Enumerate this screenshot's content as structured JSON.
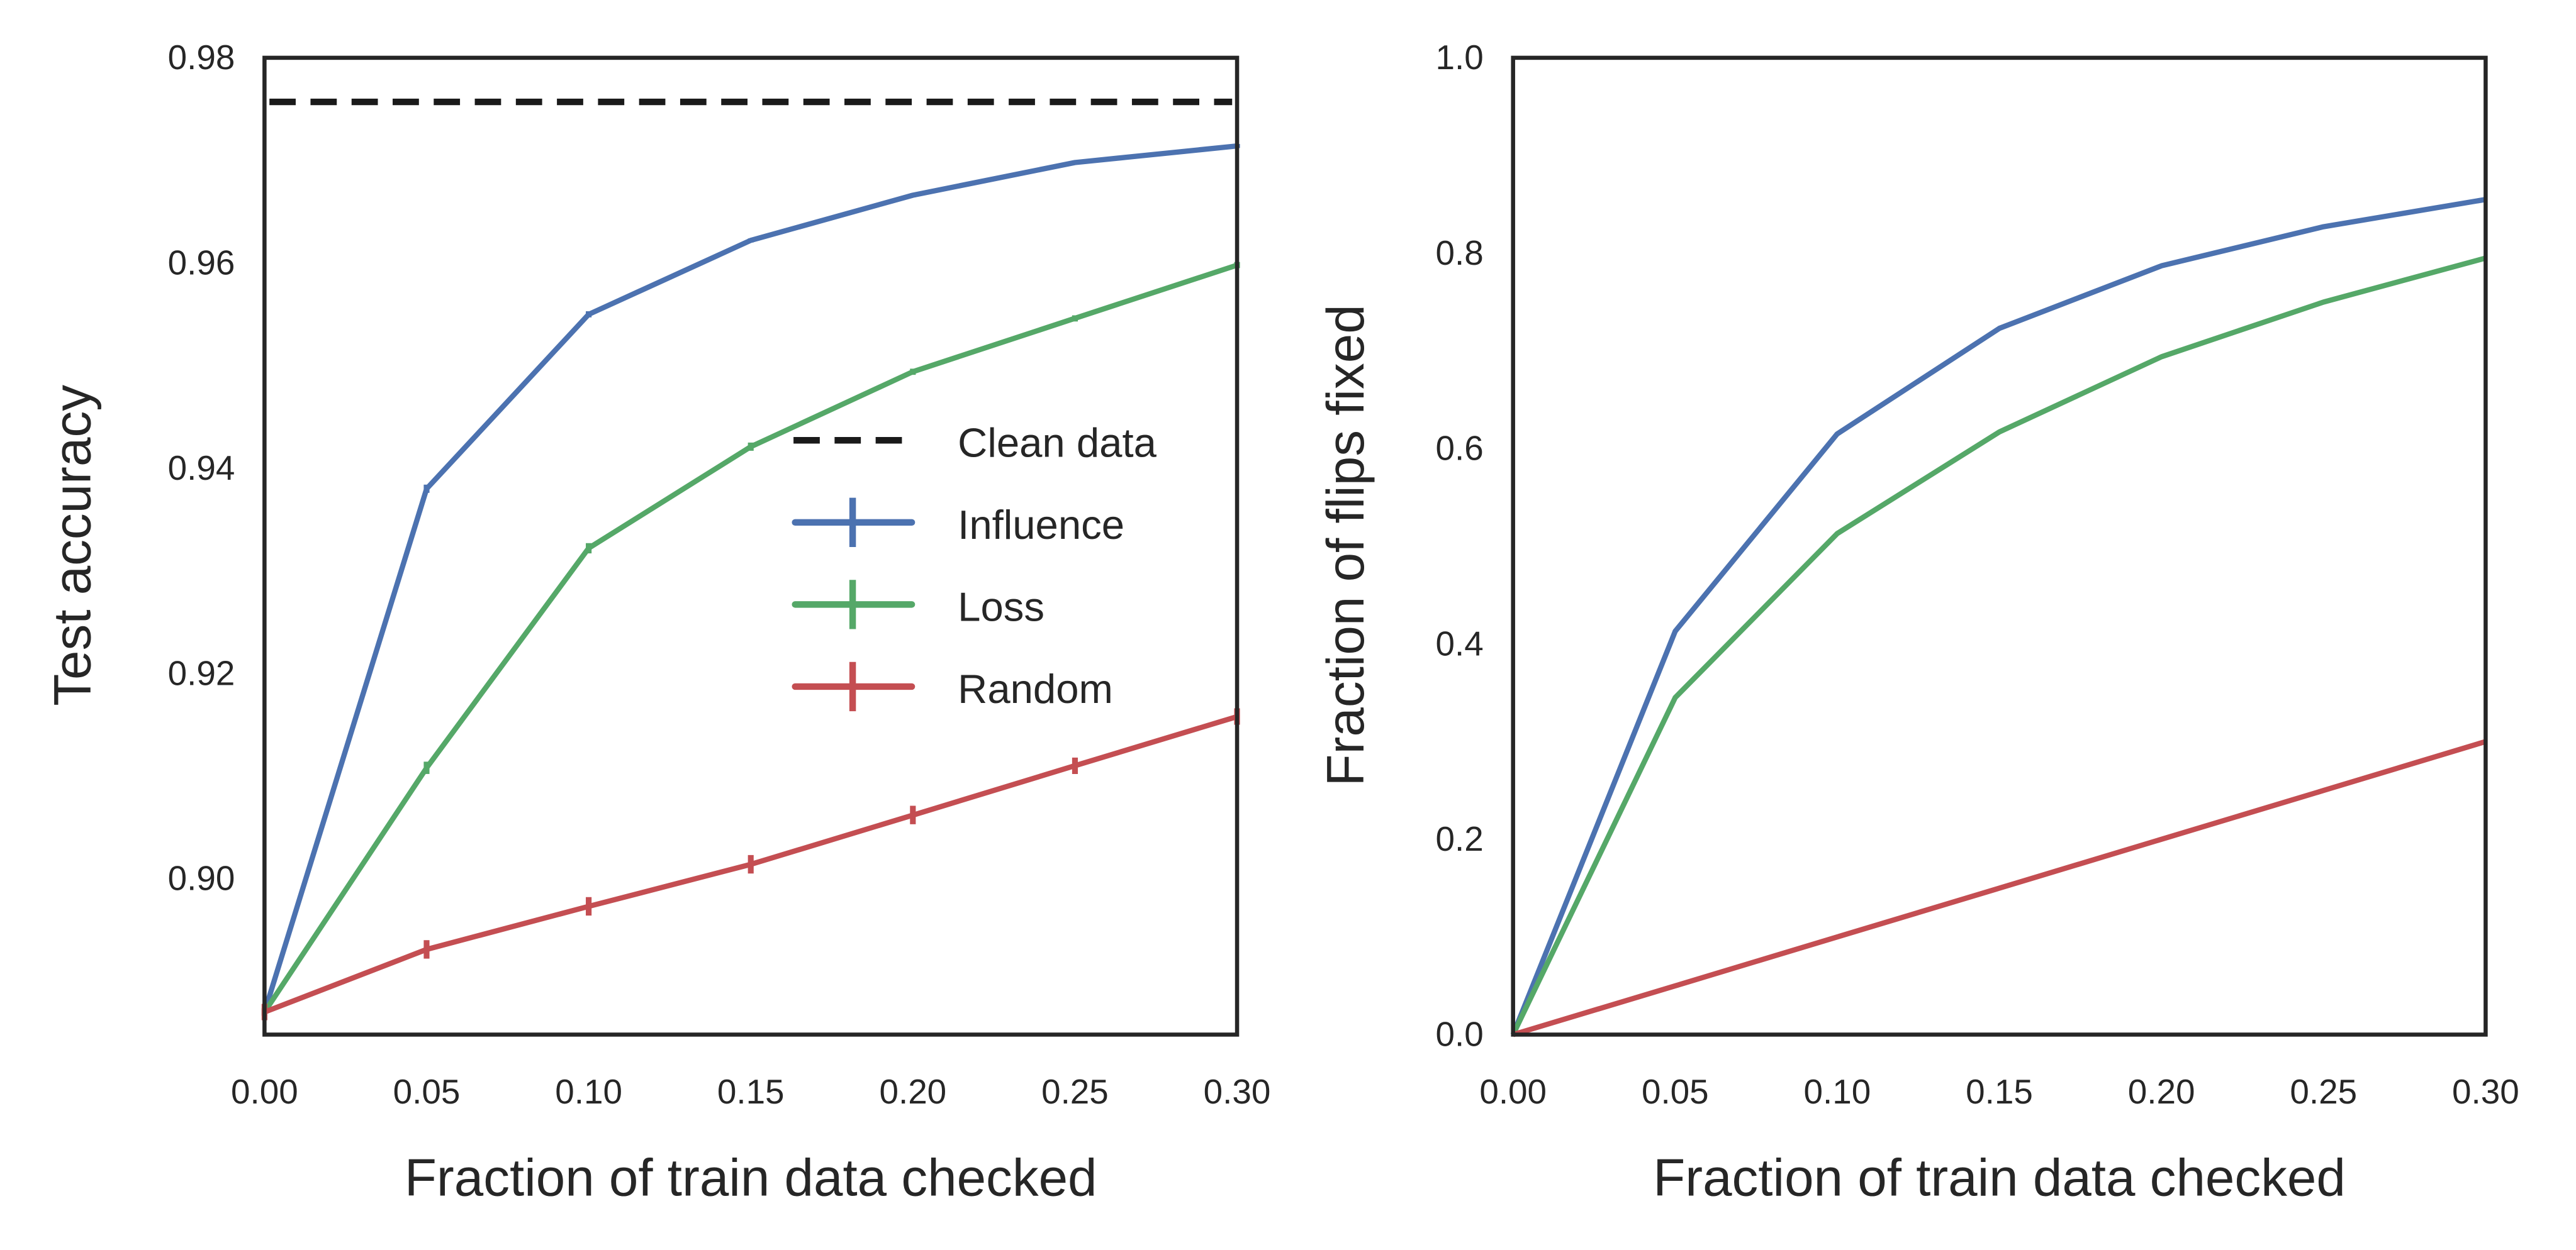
{
  "chart_data": [
    {
      "type": "line",
      "xlabel": "Fraction of train data checked",
      "ylabel": "Test accuracy",
      "xlim": [
        0.0,
        0.3
      ],
      "ylim": [
        0.8848,
        0.98
      ],
      "xticks": [
        "0.00",
        "0.05",
        "0.10",
        "0.15",
        "0.20",
        "0.25",
        "0.30"
      ],
      "yticks": [
        "0.90",
        "0.92",
        "0.94",
        "0.96",
        "0.98"
      ],
      "grid": false,
      "legend_position": "center-right",
      "x": [
        0.0,
        0.05,
        0.1,
        0.15,
        0.2,
        0.25,
        0.3
      ],
      "reference_line": {
        "name": "Clean data",
        "y": 0.9757,
        "color": "#1a1a1a",
        "style": "dashed"
      },
      "series": [
        {
          "name": "Influence",
          "color": "#4c72b0",
          "values": [
            0.887,
            0.938,
            0.955,
            0.9622,
            0.9666,
            0.9698,
            0.9714
          ],
          "yerr": [
            0.0003,
            0.0004,
            0.0003,
            0.0002,
            0.0002,
            0.0002,
            0.0002
          ]
        },
        {
          "name": "Loss",
          "color": "#55a868",
          "values": [
            0.887,
            0.9108,
            0.9322,
            0.9421,
            0.9494,
            0.9546,
            0.9598
          ],
          "yerr": [
            0.0004,
            0.0006,
            0.0005,
            0.0004,
            0.0003,
            0.0003,
            0.0003
          ]
        },
        {
          "name": "Random",
          "color": "#c44e52",
          "values": [
            0.887,
            0.8931,
            0.8973,
            0.9014,
            0.9062,
            0.911,
            0.9158
          ],
          "yerr": [
            0.0008,
            0.0009,
            0.0009,
            0.0009,
            0.0009,
            0.0008,
            0.0008
          ]
        }
      ]
    },
    {
      "type": "line",
      "xlabel": "Fraction of train data checked",
      "ylabel": "Fraction of flips fixed",
      "xlim": [
        0.0,
        0.3
      ],
      "ylim": [
        0.0,
        1.0
      ],
      "xticks": [
        "0.00",
        "0.05",
        "0.10",
        "0.15",
        "0.20",
        "0.25",
        "0.30"
      ],
      "yticks": [
        "0.0",
        "0.2",
        "0.4",
        "0.6",
        "0.8",
        "1.0"
      ],
      "grid": false,
      "x": [
        0.0,
        0.05,
        0.1,
        0.15,
        0.2,
        0.25,
        0.3
      ],
      "series": [
        {
          "color": "#4c72b0",
          "values": [
            0.0,
            0.413,
            0.615,
            0.723,
            0.787,
            0.827,
            0.855
          ]
        },
        {
          "color": "#55a868",
          "values": [
            0.0,
            0.345,
            0.513,
            0.617,
            0.694,
            0.75,
            0.795
          ]
        },
        {
          "color": "#c44e52",
          "values": [
            0.0,
            0.05,
            0.1,
            0.15,
            0.2,
            0.25,
            0.3
          ]
        }
      ]
    }
  ]
}
